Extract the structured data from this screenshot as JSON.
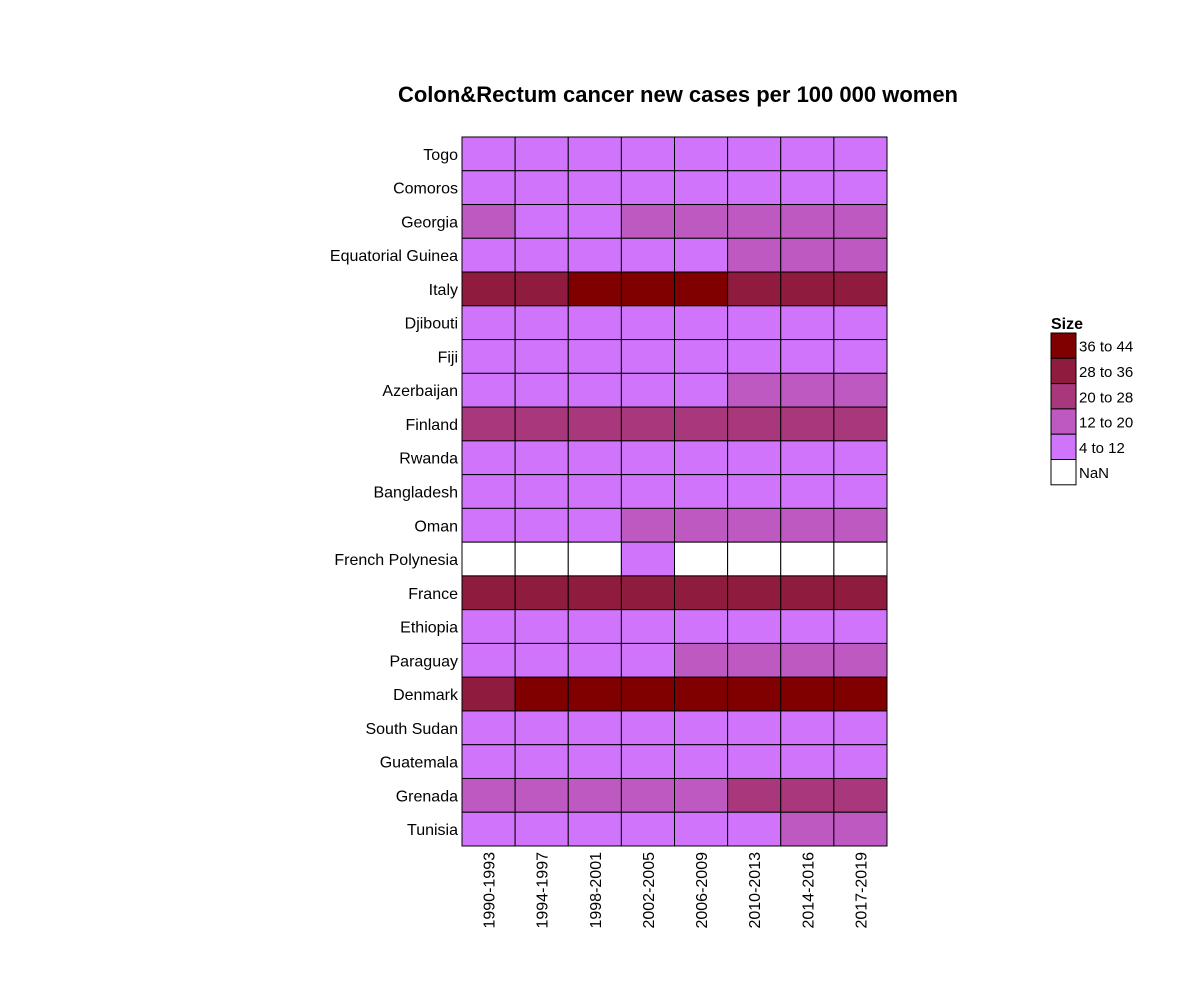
{
  "chart_data": {
    "type": "heatmap",
    "title": "Colon&Rectum cancer new cases per 100 000 women",
    "rows": [
      "Togo",
      "Comoros",
      "Georgia",
      "Equatorial Guinea",
      "Italy",
      "Djibouti",
      "Fiji",
      "Azerbaijan",
      "Finland",
      "Rwanda",
      "Bangladesh",
      "Oman",
      "French Polynesia",
      "France",
      "Ethiopia",
      "Paraguay",
      "Denmark",
      "South Sudan",
      "Guatemala",
      "Grenada",
      "Tunisia"
    ],
    "columns": [
      "1990-1993",
      "1994-1997",
      "1998-2001",
      "2002-2005",
      "2006-2009",
      "2010-2013",
      "2014-2016",
      "2017-2019"
    ],
    "values": [
      [
        "4 to 12",
        "4 to 12",
        "4 to 12",
        "4 to 12",
        "4 to 12",
        "4 to 12",
        "4 to 12",
        "4 to 12"
      ],
      [
        "4 to 12",
        "4 to 12",
        "4 to 12",
        "4 to 12",
        "4 to 12",
        "4 to 12",
        "4 to 12",
        "4 to 12"
      ],
      [
        "12 to 20",
        "4 to 12",
        "4 to 12",
        "12 to 20",
        "12 to 20",
        "12 to 20",
        "12 to 20",
        "12 to 20"
      ],
      [
        "4 to 12",
        "4 to 12",
        "4 to 12",
        "4 to 12",
        "4 to 12",
        "12 to 20",
        "12 to 20",
        "12 to 20"
      ],
      [
        "28 to 36",
        "28 to 36",
        "36 to 44",
        "36 to 44",
        "36 to 44",
        "28 to 36",
        "28 to 36",
        "28 to 36"
      ],
      [
        "4 to 12",
        "4 to 12",
        "4 to 12",
        "4 to 12",
        "4 to 12",
        "4 to 12",
        "4 to 12",
        "4 to 12"
      ],
      [
        "4 to 12",
        "4 to 12",
        "4 to 12",
        "4 to 12",
        "4 to 12",
        "4 to 12",
        "4 to 12",
        "4 to 12"
      ],
      [
        "4 to 12",
        "4 to 12",
        "4 to 12",
        "4 to 12",
        "4 to 12",
        "12 to 20",
        "12 to 20",
        "12 to 20"
      ],
      [
        "20 to 28",
        "20 to 28",
        "20 to 28",
        "20 to 28",
        "20 to 28",
        "20 to 28",
        "20 to 28",
        "20 to 28"
      ],
      [
        "4 to 12",
        "4 to 12",
        "4 to 12",
        "4 to 12",
        "4 to 12",
        "4 to 12",
        "4 to 12",
        "4 to 12"
      ],
      [
        "4 to 12",
        "4 to 12",
        "4 to 12",
        "4 to 12",
        "4 to 12",
        "4 to 12",
        "4 to 12",
        "4 to 12"
      ],
      [
        "4 to 12",
        "4 to 12",
        "4 to 12",
        "12 to 20",
        "12 to 20",
        "12 to 20",
        "12 to 20",
        "12 to 20"
      ],
      [
        "NaN",
        "NaN",
        "NaN",
        "4 to 12",
        "NaN",
        "NaN",
        "NaN",
        "NaN"
      ],
      [
        "28 to 36",
        "28 to 36",
        "28 to 36",
        "28 to 36",
        "28 to 36",
        "28 to 36",
        "28 to 36",
        "28 to 36"
      ],
      [
        "4 to 12",
        "4 to 12",
        "4 to 12",
        "4 to 12",
        "4 to 12",
        "4 to 12",
        "4 to 12",
        "4 to 12"
      ],
      [
        "4 to 12",
        "4 to 12",
        "4 to 12",
        "4 to 12",
        "12 to 20",
        "12 to 20",
        "12 to 20",
        "12 to 20"
      ],
      [
        "28 to 36",
        "36 to 44",
        "36 to 44",
        "36 to 44",
        "36 to 44",
        "36 to 44",
        "36 to 44",
        "36 to 44"
      ],
      [
        "4 to 12",
        "4 to 12",
        "4 to 12",
        "4 to 12",
        "4 to 12",
        "4 to 12",
        "4 to 12",
        "4 to 12"
      ],
      [
        "4 to 12",
        "4 to 12",
        "4 to 12",
        "4 to 12",
        "4 to 12",
        "4 to 12",
        "4 to 12",
        "4 to 12"
      ],
      [
        "12 to 20",
        "12 to 20",
        "12 to 20",
        "12 to 20",
        "12 to 20",
        "20 to 28",
        "20 to 28",
        "20 to 28"
      ],
      [
        "4 to 12",
        "4 to 12",
        "4 to 12",
        "4 to 12",
        "4 to 12",
        "4 to 12",
        "12 to 20",
        "12 to 20"
      ]
    ],
    "legend": {
      "title": "Size",
      "placement": "right",
      "entries": [
        {
          "label": "36 to 44",
          "color": "#800000"
        },
        {
          "label": "28 to 36",
          "color": "#8f1b3e"
        },
        {
          "label": "20 to 28",
          "color": "#a8387b"
        },
        {
          "label": "12 to 20",
          "color": "#bd59c1"
        },
        {
          "label": "4 to 12",
          "color": "#d075fb"
        },
        {
          "label": "NaN",
          "color": "#ffffff"
        }
      ]
    },
    "grid": false
  }
}
